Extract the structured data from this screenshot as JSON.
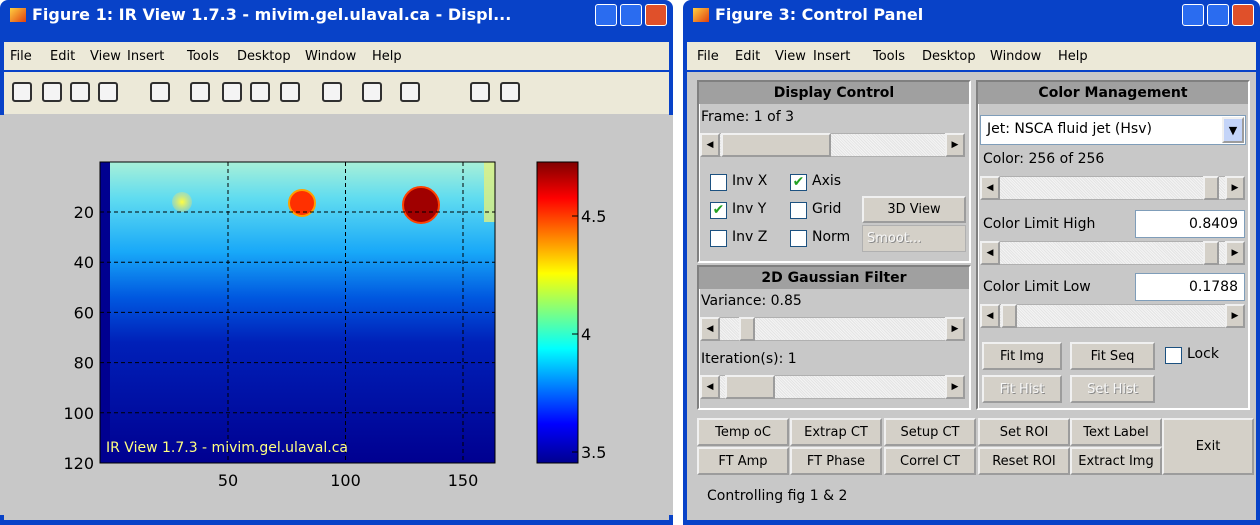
{
  "figure1": {
    "title": "Figure 1: IR View 1.7.3 - mivim.gel.ulaval.ca - Displ...",
    "menu": [
      "File",
      "Edit",
      "View",
      "Insert",
      "Tools",
      "Desktop",
      "Window",
      "Help"
    ],
    "axes": {
      "yticks": [
        "20",
        "40",
        "60",
        "80",
        "100",
        "120"
      ],
      "xticks": [
        "50",
        "100",
        "150"
      ],
      "annotation": "IR View 1.7.3 - mivim.gel.ulaval.ca"
    },
    "colorbar": {
      "ticks": [
        "4.5",
        "4",
        "3.5"
      ]
    }
  },
  "figure3": {
    "title": "Figure 3: Control Panel",
    "menu": [
      "File",
      "Edit",
      "View",
      "Insert",
      "Tools",
      "Desktop",
      "Window",
      "Help"
    ],
    "display_control": {
      "title": "Display Control",
      "frame": "Frame: 1 of 3",
      "checkboxes": [
        {
          "label": "Inv X",
          "checked": false
        },
        {
          "label": "Axis",
          "checked": true
        },
        {
          "label": "Inv Y",
          "checked": true
        },
        {
          "label": "Grid",
          "checked": false
        },
        {
          "label": "Inv Z",
          "checked": false
        },
        {
          "label": "Norm",
          "checked": false
        }
      ],
      "button": "3D View",
      "dropdown": "Smoot..."
    },
    "gaussian_filter": {
      "title": "2D Gaussian Filter",
      "variance": "Variance: 0.85",
      "iterations": "Iteration(s): 1"
    },
    "color_management": {
      "title": "Color Management",
      "colormap": "Jet: NSCA fluid jet (Hsv)",
      "color": "Color: 256 of 256",
      "limit_high": {
        "label": "Color Limit High",
        "value": "0.8409"
      },
      "limit_low": {
        "label": "Color Limit Low",
        "value": "0.1788"
      },
      "buttons": [
        "Fit Img",
        "Fit Seq",
        "Fit Hist",
        "Set Hist"
      ],
      "lock": {
        "label": "Lock",
        "checked": false
      }
    },
    "buttons": [
      "Temp oC",
      "Extrap CT",
      "Setup CT",
      "Set ROI",
      "Text Label",
      "Exit",
      "FT Amp",
      "FT Phase",
      "Correl CT",
      "Reset ROI",
      "Extract Img"
    ],
    "status": "Controlling fig 1 & 2"
  }
}
